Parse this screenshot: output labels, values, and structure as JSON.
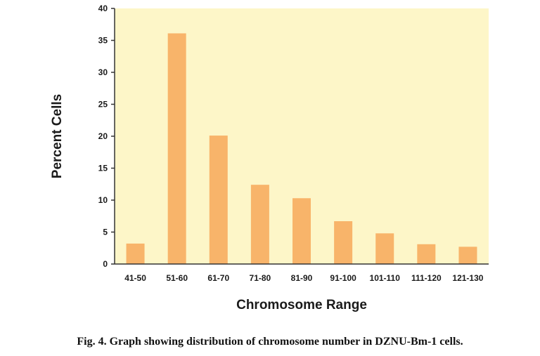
{
  "caption": "Fig. 4. Graph showing distribution of chromosome number in DZNU-Bm-1 cells.",
  "colors": {
    "plot_background": "#fdf6c8",
    "bar": "#f8b46a",
    "axis": "#333333"
  },
  "chart_data": {
    "type": "bar",
    "categories": [
      "41-50",
      "51-60",
      "61-70",
      "71-80",
      "81-90",
      "91-100",
      "101-110",
      "111-120",
      "121-130"
    ],
    "values": [
      3.2,
      36.1,
      20.1,
      12.4,
      10.3,
      6.7,
      4.8,
      3.1,
      2.7
    ],
    "xlabel": "Chromosome Range",
    "ylabel": "Percent Cells",
    "ylim": [
      0,
      40
    ],
    "yticks": [
      0,
      5,
      10,
      15,
      20,
      25,
      30,
      35,
      40
    ],
    "grid": false,
    "legend": "none"
  }
}
